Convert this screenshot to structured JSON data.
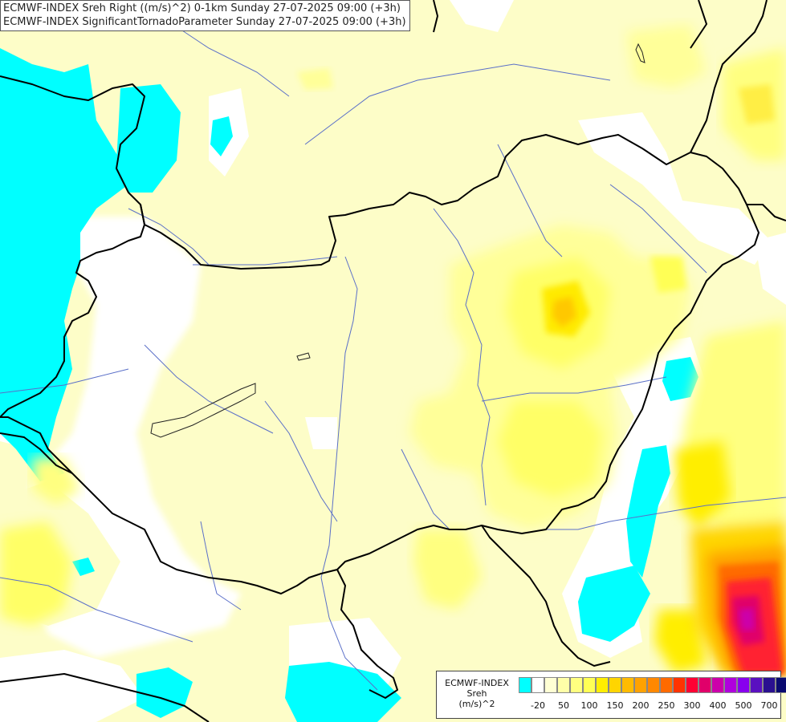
{
  "title": {
    "line1": "ECMWF-INDEX Sreh Right ((m/s)^2) 0-1km Sunday 27-07-2025 09:00 (+3h)",
    "line2": "ECMWF-INDEX SignificantTornadoParameter Sunday 27-07-2025 09:00 (+3h)"
  },
  "legend": {
    "line1": "ECMWF-INDEX",
    "line2": "Sreh",
    "line3": "(m/s)^2",
    "colors": [
      "#00ffff",
      "#ffffff",
      "#ffffd4",
      "#ffffa8",
      "#ffff80",
      "#ffff55",
      "#ffee00",
      "#ffd500",
      "#ffbb00",
      "#ffa200",
      "#ff8800",
      "#ff6a00",
      "#ff3300",
      "#ff0033",
      "#e0006a",
      "#cc00aa",
      "#b000dd",
      "#8800ee",
      "#5a10c0",
      "#2a1090",
      "#0a0a70"
    ],
    "ticks": [
      "-20",
      "50",
      "100",
      "150",
      "200",
      "250",
      "300",
      "400",
      "500",
      "700"
    ]
  }
}
